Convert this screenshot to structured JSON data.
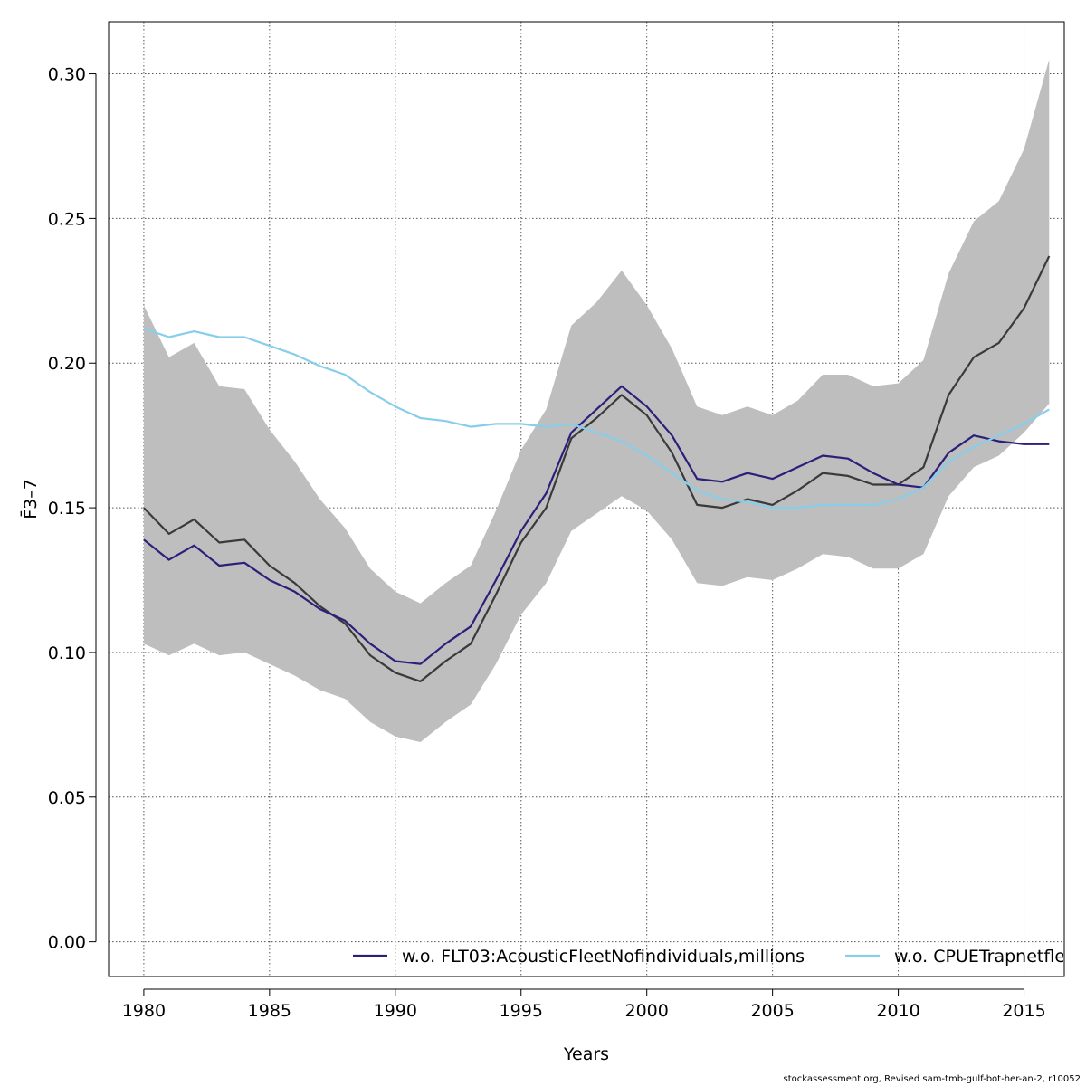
{
  "chart_data": {
    "type": "line",
    "title": "",
    "xlabel": "Years",
    "ylabel": "F̄3–7",
    "xlim": [
      1978.6,
      2016.6
    ],
    "ylim": [
      -0.012,
      0.318
    ],
    "xticks": [
      1980,
      1985,
      1990,
      1995,
      2000,
      2005,
      2010,
      2015
    ],
    "xtick_labels": [
      "1980",
      "1985",
      "1990",
      "1995",
      "2000",
      "2005",
      "2010",
      "2015"
    ],
    "yticks": [
      0.0,
      0.05,
      0.1,
      0.15,
      0.2,
      0.25,
      0.3
    ],
    "ytick_labels": [
      "0.00",
      "0.05",
      "0.10",
      "0.15",
      "0.20",
      "0.25",
      "0.30"
    ],
    "grid": true,
    "legend_position": "bottom",
    "x": [
      1980,
      1981,
      1982,
      1983,
      1984,
      1985,
      1986,
      1987,
      1988,
      1989,
      1990,
      1991,
      1992,
      1993,
      1994,
      1995,
      1996,
      1997,
      1998,
      1999,
      2000,
      2001,
      2002,
      2003,
      2004,
      2005,
      2006,
      2007,
      2008,
      2009,
      2010,
      2011,
      2012,
      2013,
      2014,
      2015,
      2016
    ],
    "band": {
      "upper": [
        0.22,
        0.202,
        0.207,
        0.192,
        0.191,
        0.177,
        0.166,
        0.153,
        0.143,
        0.129,
        0.121,
        0.117,
        0.124,
        0.13,
        0.149,
        0.17,
        0.184,
        0.213,
        0.221,
        0.232,
        0.22,
        0.205,
        0.185,
        0.182,
        0.185,
        0.182,
        0.187,
        0.196,
        0.196,
        0.192,
        0.193,
        0.201,
        0.231,
        0.249,
        0.256,
        0.274,
        0.305
      ],
      "lower": [
        0.103,
        0.099,
        0.103,
        0.099,
        0.1,
        0.096,
        0.092,
        0.087,
        0.084,
        0.076,
        0.071,
        0.069,
        0.076,
        0.082,
        0.096,
        0.113,
        0.124,
        0.142,
        0.148,
        0.154,
        0.149,
        0.139,
        0.124,
        0.123,
        0.126,
        0.125,
        0.129,
        0.134,
        0.133,
        0.129,
        0.129,
        0.134,
        0.154,
        0.164,
        0.168,
        0.176,
        0.186
      ],
      "color": "#bebebe"
    },
    "series": [
      {
        "values": [
          0.15,
          0.141,
          0.146,
          0.138,
          0.139,
          0.13,
          0.124,
          0.116,
          0.11,
          0.099,
          0.093,
          0.09,
          0.097,
          0.103,
          0.12,
          0.138,
          0.15,
          0.174,
          0.181,
          0.189,
          0.182,
          0.169,
          0.151,
          0.15,
          0.153,
          0.151,
          0.156,
          0.162,
          0.161,
          0.158,
          0.158,
          0.164,
          0.189,
          0.202,
          0.207,
          0.219,
          0.237
        ],
        "color": "#3a3a3a"
      },
      {
        "name": "w.o. FLT03:AcousticFleetNofindividuals,millions",
        "values": [
          0.139,
          0.132,
          0.137,
          0.13,
          0.131,
          0.125,
          0.121,
          0.115,
          0.111,
          0.103,
          0.097,
          0.096,
          0.103,
          0.109,
          0.125,
          0.142,
          0.155,
          0.176,
          0.184,
          0.192,
          0.185,
          0.175,
          0.16,
          0.159,
          0.162,
          0.16,
          0.164,
          0.168,
          0.167,
          0.162,
          0.158,
          0.157,
          0.169,
          0.175,
          0.173,
          0.172,
          0.172
        ],
        "color": "#2c1f7a"
      },
      {
        "name": "w.o. CPUETrapnetfle",
        "values": [
          0.212,
          0.209,
          0.211,
          0.209,
          0.209,
          0.206,
          0.203,
          0.199,
          0.196,
          0.19,
          0.185,
          0.181,
          0.18,
          0.178,
          0.179,
          0.179,
          0.178,
          0.179,
          0.176,
          0.173,
          0.168,
          0.162,
          0.156,
          0.153,
          0.152,
          0.15,
          0.15,
          0.151,
          0.151,
          0.151,
          0.153,
          0.157,
          0.166,
          0.171,
          0.175,
          0.179,
          0.184
        ],
        "color": "#87ceeb"
      }
    ]
  },
  "footer": "stockassessment.org, Revised  sam-tmb-gulf-bot-her-an-2, r10052"
}
